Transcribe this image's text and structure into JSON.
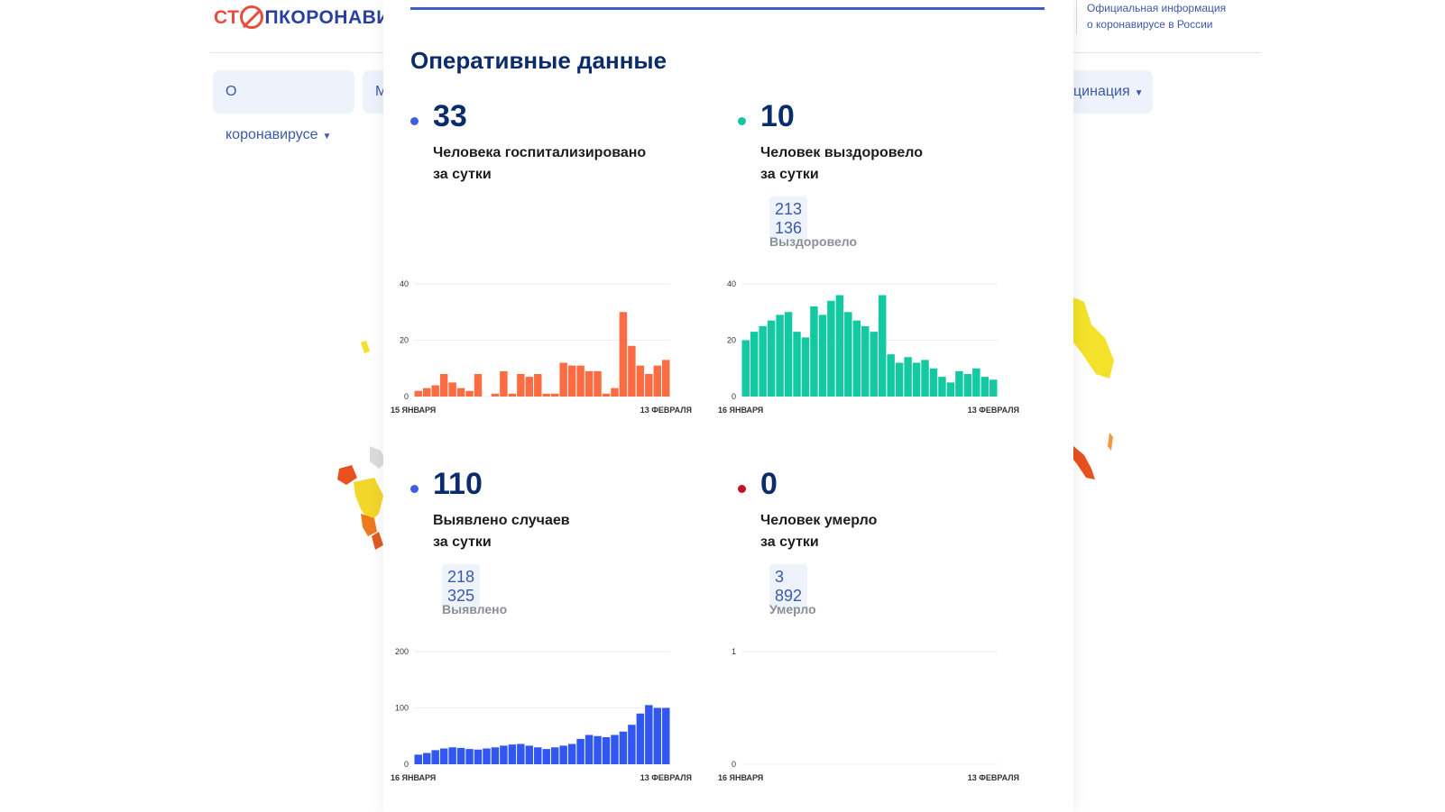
{
  "header": {
    "logo_prefix": "СТ",
    "logo_suffix": "ПКОРОНАВИ",
    "official_line1": "Официальная информация",
    "official_line2": "о коронавирусе в России"
  },
  "nav": [
    {
      "label": "О коронавирусе"
    },
    {
      "label": "М"
    },
    {
      "label": "цинация"
    }
  ],
  "panel": {
    "title": "Оперативные данные",
    "stats": [
      {
        "number": "33",
        "desc_line1": "Человека госпитализировано",
        "desc_line2": "за сутки",
        "total": "",
        "total_label": "",
        "color": "#3b5fe0"
      },
      {
        "number": "10",
        "desc_line1": "Человек выздоровело",
        "desc_line2": "за сутки",
        "total": "213 136",
        "total_label": "Выздоровело",
        "color": "#13c4a3"
      },
      {
        "number": "110",
        "desc_line1": "Выявлено случаев",
        "desc_line2": "за сутки",
        "total": "218 325",
        "total_label": "Выявлено",
        "color": "#3b5fe0"
      },
      {
        "number": "0",
        "desc_line1": "Человек умерло",
        "desc_line2": "за сутки",
        "total": "3 892",
        "total_label": "Умерло",
        "color": "#c8101e"
      }
    ]
  },
  "chart_data": [
    {
      "type": "bar",
      "color": "#fb6c42",
      "x_start_label": "15 ЯНВАРЯ",
      "x_end_label": "13 ФЕВРАЛЯ",
      "yticks": [
        "0",
        "20",
        "40"
      ],
      "ylim": [
        0,
        40
      ],
      "values": [
        2,
        3,
        4,
        8,
        5,
        3,
        2,
        8,
        0,
        1,
        9,
        1,
        8,
        7,
        8,
        1,
        1,
        12,
        11,
        11,
        9,
        9,
        1,
        3,
        30,
        18,
        11,
        8,
        11,
        13
      ]
    },
    {
      "type": "bar",
      "color": "#13c9a1",
      "x_start_label": "16 ЯНВАРЯ",
      "x_end_label": "13 ФЕВРАЛЯ",
      "yticks": [
        "0",
        "20",
        "40"
      ],
      "ylim": [
        0,
        40
      ],
      "values": [
        20,
        23,
        25,
        27,
        29,
        30,
        23,
        21,
        32,
        29,
        34,
        36,
        30,
        27,
        25,
        23,
        36,
        15,
        12,
        14,
        12,
        13,
        10,
        7,
        5,
        9,
        8,
        10,
        7,
        6
      ]
    },
    {
      "type": "bar",
      "color": "#3157f0",
      "x_start_label": "16 ЯНВАРЯ",
      "x_end_label": "13 ФЕВРАЛЯ",
      "yticks": [
        "0",
        "100",
        "200"
      ],
      "ylim": [
        0,
        200
      ],
      "values": [
        17,
        20,
        25,
        28,
        30,
        29,
        27,
        26,
        28,
        30,
        33,
        35,
        36,
        33,
        30,
        27,
        30,
        33,
        36,
        45,
        52,
        50,
        48,
        52,
        58,
        70,
        90,
        105,
        100,
        100
      ]
    },
    {
      "type": "bar",
      "color": "#c8101e",
      "x_start_label": "16 ЯНВАРЯ",
      "x_end_label": "13 ФЕВРАЛЯ",
      "yticks": [
        "0",
        "1"
      ],
      "ylim": [
        0,
        1
      ],
      "values": [
        0,
        0,
        0,
        0,
        0,
        0,
        0,
        0,
        0,
        0,
        0,
        0,
        0,
        0,
        0,
        0,
        0,
        0,
        0,
        0,
        0,
        0,
        0,
        0,
        0,
        0,
        0,
        0,
        0,
        0
      ]
    }
  ]
}
